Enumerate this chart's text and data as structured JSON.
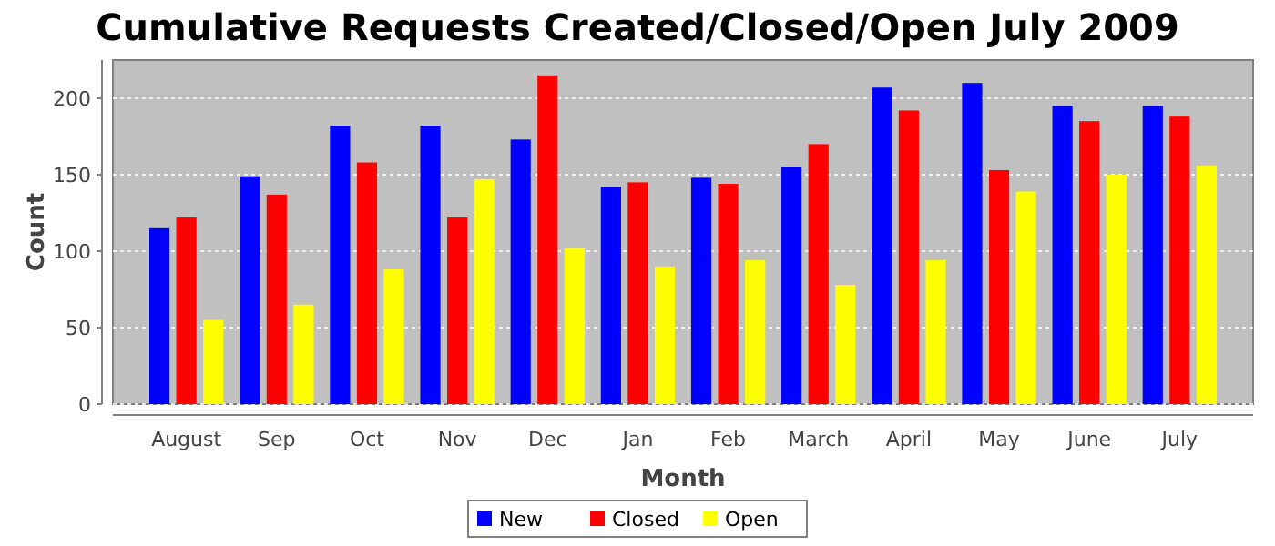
{
  "chart_data": {
    "type": "bar",
    "title": "Cumulative Requests Created/Closed/Open July 2009",
    "xlabel": "Month",
    "ylabel": "Count",
    "categories": [
      "August",
      "Sep",
      "Oct",
      "Nov",
      "Dec",
      "Jan",
      "Feb",
      "March",
      "April",
      "May",
      "June",
      "July"
    ],
    "series": [
      {
        "name": "New",
        "color": "#0000ff",
        "values": [
          115,
          149,
          182,
          182,
          173,
          142,
          148,
          155,
          207,
          210,
          195,
          195
        ]
      },
      {
        "name": "Closed",
        "color": "#ff0000",
        "values": [
          122,
          137,
          158,
          122,
          215,
          145,
          144,
          170,
          192,
          153,
          185,
          188
        ]
      },
      {
        "name": "Open",
        "color": "#ffff00",
        "values": [
          55,
          65,
          88,
          147,
          102,
          90,
          94,
          78,
          94,
          139,
          150,
          156
        ]
      }
    ],
    "ylim": [
      0,
      225
    ],
    "yticks": [
      0,
      50,
      100,
      150,
      200
    ],
    "grid": "y",
    "legend": "bottom"
  }
}
